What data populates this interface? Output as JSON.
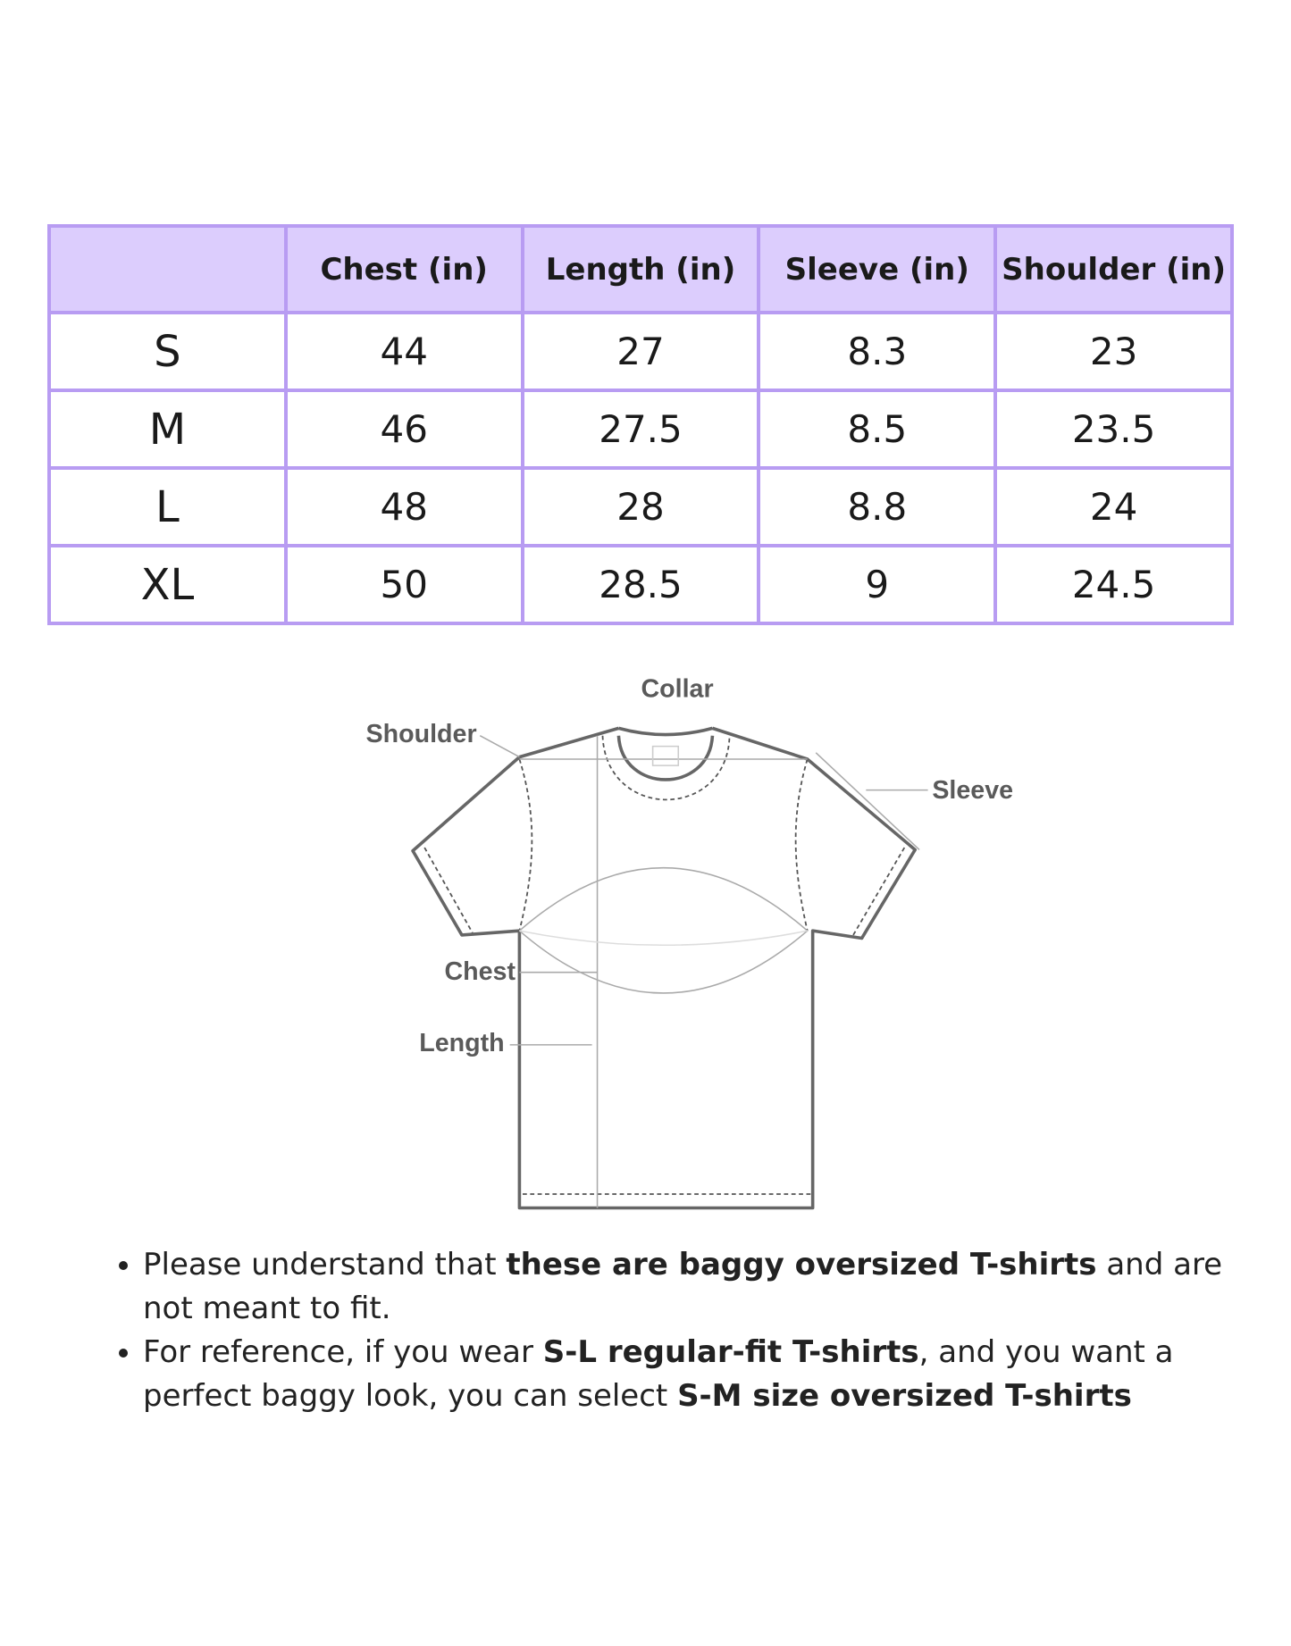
{
  "table": {
    "headers": [
      "",
      "Chest (in)",
      "Length (in)",
      "Sleeve (in)",
      "Shoulder (in)"
    ],
    "rows": [
      {
        "size": "S",
        "chest": "44",
        "length": "27",
        "sleeve": "8.3",
        "shoulder": "23"
      },
      {
        "size": "M",
        "chest": "46",
        "length": "27.5",
        "sleeve": "8.5",
        "shoulder": "23.5"
      },
      {
        "size": "L",
        "chest": "48",
        "length": "28",
        "sleeve": "8.8",
        "shoulder": "24"
      },
      {
        "size": "XL",
        "chest": "50",
        "length": "28.5",
        "sleeve": "9",
        "shoulder": "24.5"
      }
    ],
    "colors": {
      "border": "#b89cf2",
      "header_bg": "#dccdfd"
    }
  },
  "diagram": {
    "labels": {
      "collar": "Collar",
      "shoulder": "Shoulder",
      "sleeve": "Sleeve",
      "chest": "Chest",
      "length": "Length"
    }
  },
  "notes": [
    {
      "pre": "Please understand that ",
      "bold": "these are baggy oversized T-shirts",
      "mid": " and are not meant to fit.",
      "bold2": "",
      "post": ""
    },
    {
      "pre": "For reference, if you wear ",
      "bold": "S-L regular-fit T-shirts",
      "mid": ", and you want a perfect baggy look, you can select ",
      "bold2": "S-M size oversized T-shirts",
      "post": ""
    }
  ]
}
